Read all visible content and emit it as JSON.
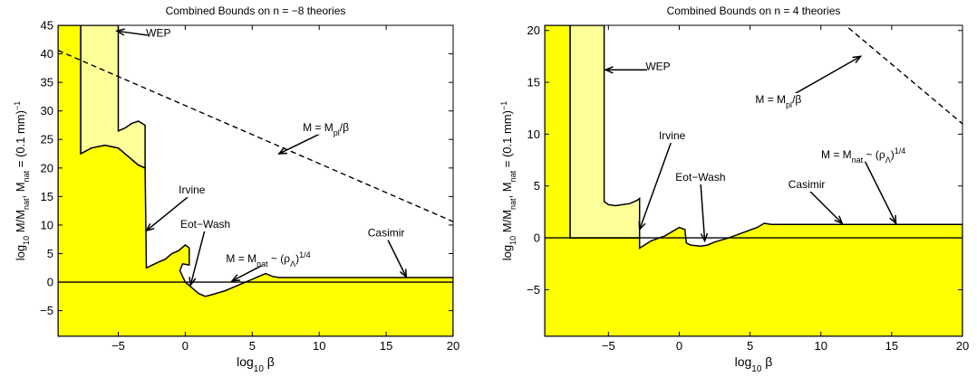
{
  "colors": {
    "excluded_fill": "#ffff00",
    "weak_fill": "#ffff99",
    "line": "#000000",
    "background": "#ffffff"
  },
  "chart_data": [
    {
      "type": "area",
      "title": "Combined Bounds on n = −8 theories",
      "xlabel": {
        "main": "log",
        "sub": "10",
        "tail": " β"
      },
      "ylabel": {
        "p1": "log",
        "s1": "10",
        "p2": " M/M",
        "s2": "nat",
        "p3": ", M",
        "s3": "nat",
        "p4": " = (0.1 mm)",
        "sup": "−1"
      },
      "xlim": [
        -9.5,
        20
      ],
      "ylim": [
        -9.5,
        45
      ],
      "xticks": [
        -5,
        0,
        5,
        10,
        15,
        20
      ],
      "xtick_labels": [
        "−5",
        "0",
        "5",
        "10",
        "15",
        "20"
      ],
      "yticks": [
        -5,
        0,
        5,
        10,
        15,
        20,
        25,
        30,
        35,
        40,
        45
      ],
      "ytick_labels": [
        "−5",
        "0",
        "5",
        "10",
        "15",
        "20",
        "25",
        "30",
        "35",
        "40",
        "45"
      ],
      "grid": false,
      "excluded_boundary": [
        [
          -9.5,
          45
        ],
        [
          -7.8,
          45
        ],
        [
          -7.8,
          22.5
        ],
        [
          -7,
          23.5
        ],
        [
          -6,
          24
        ],
        [
          -5,
          23.5
        ],
        [
          -4,
          21.5
        ],
        [
          -3.5,
          20.5
        ],
        [
          -3,
          20
        ],
        [
          -2.9,
          2.5
        ],
        [
          -2,
          3.5
        ],
        [
          -1.5,
          4
        ],
        [
          -1,
          5
        ],
        [
          -0.5,
          5.5
        ],
        [
          0,
          6.5
        ],
        [
          0.3,
          6
        ],
        [
          0.3,
          3
        ],
        [
          -0.2,
          3.2
        ],
        [
          -0.4,
          2
        ],
        [
          0,
          0
        ],
        [
          0.5,
          -1
        ],
        [
          1,
          -2
        ],
        [
          1.5,
          -2.5
        ],
        [
          2,
          -2.2
        ],
        [
          3,
          -1.5
        ],
        [
          4,
          -0.5
        ],
        [
          5,
          0.5
        ],
        [
          5.5,
          1
        ],
        [
          6,
          1.5
        ],
        [
          6.5,
          1
        ],
        [
          7,
          0.8
        ],
        [
          20,
          0.8
        ],
        [
          20,
          -9.5
        ],
        [
          -9.5,
          -9.5
        ]
      ],
      "weak_region": [
        [
          -7.8,
          45
        ],
        [
          -5,
          45
        ],
        [
          -5,
          26.5
        ],
        [
          -4.5,
          27
        ],
        [
          -4,
          27.8
        ],
        [
          -3.5,
          28.2
        ],
        [
          -3,
          27.5
        ],
        [
          -3,
          20
        ],
        [
          -3.5,
          20.5
        ],
        [
          -4,
          21.5
        ],
        [
          -5,
          23.5
        ],
        [
          -6,
          24
        ],
        [
          -7,
          23.5
        ],
        [
          -7.8,
          22.5
        ]
      ],
      "planck_line": {
        "label": {
          "pre": "M = M",
          "sub": "pl",
          "post": "/β"
        },
        "points": [
          [
            -9.5,
            40.6
          ],
          [
            20,
            10.6
          ]
        ]
      },
      "zero_line": 0,
      "annotations": [
        {
          "label": "WEP",
          "text_at": [
            -2,
            43
          ],
          "arrow_to": [
            -5.1,
            44
          ]
        },
        {
          "label": "Irvine",
          "text_at": [
            0.5,
            15.5
          ],
          "arrow_to": [
            -2.9,
            9
          ]
        },
        {
          "label": "Eot−Wash",
          "text_at": [
            1.5,
            9.5
          ],
          "arrow_to": [
            0.4,
            -0.5
          ]
        },
        {
          "label": {
            "pre": "M = M",
            "sub": "nat",
            "mid": " ~ (ρ",
            "sub2": "Λ",
            "post": ")",
            "sup": "1/4"
          },
          "text_at": [
            6.2,
            3.5
          ],
          "arrow_to": [
            3.5,
            0.2
          ]
        },
        {
          "label": "Casimir",
          "text_at": [
            15,
            8
          ],
          "arrow_to": [
            16.5,
            0.9
          ]
        },
        {
          "label": {
            "pre": "M = M",
            "sub": "pl",
            "post": "/β"
          },
          "text_at": [
            10.5,
            26.5
          ],
          "arrow_to": [
            7,
            22.5
          ]
        }
      ]
    },
    {
      "type": "area",
      "title": "Combined Bounds on n = 4 theories",
      "xlabel": {
        "main": "log",
        "sub": "10",
        "tail": " β"
      },
      "ylabel": {
        "p1": "log",
        "s1": "10",
        "p2": " M/M",
        "s2": "nat",
        "p3": ", M",
        "s3": "nat",
        "p4": " = (0.1 mm)",
        "sup": "−1"
      },
      "xlim": [
        -9.5,
        20
      ],
      "ylim": [
        -9.5,
        20.5
      ],
      "xticks": [
        -5,
        0,
        5,
        10,
        15,
        20
      ],
      "xtick_labels": [
        "−5",
        "0",
        "5",
        "10",
        "15",
        "20"
      ],
      "yticks": [
        -5,
        0,
        5,
        10,
        15,
        20
      ],
      "ytick_labels": [
        "−5",
        "0",
        "5",
        "10",
        "15",
        "20"
      ],
      "grid": false,
      "excluded_boundary": [
        [
          -9.5,
          20.5
        ],
        [
          -7.7,
          20.5
        ],
        [
          -7.7,
          0
        ],
        [
          -2.8,
          0
        ],
        [
          -2.8,
          -1
        ],
        [
          -2,
          -0.3
        ],
        [
          -1,
          0.2
        ],
        [
          0,
          1
        ],
        [
          0.4,
          0.8
        ],
        [
          0.5,
          -0.5
        ],
        [
          0.8,
          -0.7
        ],
        [
          1.5,
          -0.8
        ],
        [
          2,
          -0.7
        ],
        [
          2.5,
          -0.4
        ],
        [
          3.5,
          0
        ],
        [
          4.5,
          0.5
        ],
        [
          5.5,
          1
        ],
        [
          6,
          1.4
        ],
        [
          6.5,
          1.3
        ],
        [
          20,
          1.3
        ],
        [
          20,
          -9.5
        ],
        [
          -9.5,
          -9.5
        ]
      ],
      "weak_region": [
        [
          -7.7,
          20.5
        ],
        [
          -5.3,
          20.5
        ],
        [
          -5.3,
          3.5
        ],
        [
          -5,
          3.2
        ],
        [
          -4.5,
          3.1
        ],
        [
          -4,
          3.2
        ],
        [
          -3.5,
          3.3
        ],
        [
          -3,
          3.6
        ],
        [
          -2.8,
          3.8
        ],
        [
          -2.8,
          0
        ],
        [
          -7.7,
          0
        ]
      ],
      "planck_line": {
        "label": {
          "pre": "M = M",
          "sub": "pl",
          "post": "/β"
        },
        "points": [
          [
            10,
            22.5
          ],
          [
            20,
            11
          ]
        ]
      },
      "zero_line": 0,
      "annotations": [
        {
          "label": "WEP",
          "text_at": [
            -1.5,
            16.2
          ],
          "arrow_to": [
            -5.2,
            16.2
          ]
        },
        {
          "label": "Irvine",
          "text_at": [
            -0.5,
            9.5
          ],
          "arrow_to": [
            -2.8,
            0.8
          ]
        },
        {
          "label": "Eot−Wash",
          "text_at": [
            1.5,
            5.5
          ],
          "arrow_to": [
            1.8,
            -0.3
          ]
        },
        {
          "label": {
            "pre": "M = M",
            "sub": "nat",
            "mid": " ~ (ρ",
            "sub2": "Λ",
            "post": ")",
            "sup": "1/4"
          },
          "text_at": [
            13,
            7.7
          ],
          "arrow_to": [
            15.3,
            1.4
          ]
        },
        {
          "label": "Casimir",
          "text_at": [
            9,
            4.8
          ],
          "arrow_to": [
            11.5,
            1.4
          ]
        },
        {
          "label": {
            "pre": "M = M",
            "sub": "pl",
            "post": "/β"
          },
          "text_at": [
            7,
            13
          ],
          "arrow_to": [
            12.8,
            17.5
          ]
        }
      ]
    }
  ]
}
